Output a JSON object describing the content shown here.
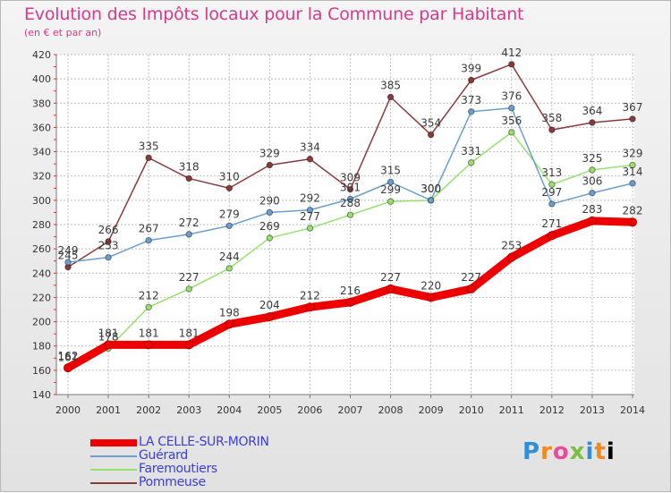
{
  "title": "Evolution des Impôts locaux pour la Commune par Habitant",
  "subtitle": "(en € et par an)",
  "logo": [
    "P",
    "r",
    "o",
    "x",
    "i",
    "t",
    "i"
  ],
  "chart_data": {
    "type": "line",
    "x": [
      "2000",
      "2001",
      "2002",
      "2003",
      "2004",
      "2005",
      "2006",
      "2007",
      "2008",
      "2009",
      "2010",
      "2011",
      "2012",
      "2013",
      "2014"
    ],
    "ylim": [
      140,
      420
    ],
    "yticks": [
      140,
      160,
      180,
      200,
      220,
      240,
      260,
      280,
      300,
      320,
      340,
      360,
      380,
      400,
      420
    ],
    "grid": true,
    "legend_position": "bottom-left",
    "series": [
      {
        "name": "LA CELLE-SUR-MORIN",
        "color": "#ee0000",
        "values": [
          162,
          181,
          181,
          181,
          198,
          204,
          212,
          216,
          227,
          220,
          227,
          253,
          271,
          283,
          282
        ]
      },
      {
        "name": "Guérard",
        "color": "#6a9fd0",
        "values": [
          249,
          253,
          267,
          272,
          279,
          290,
          292,
          301,
          315,
          300,
          373,
          376,
          297,
          306,
          314
        ]
      },
      {
        "name": "Faremoutiers",
        "color": "#98e070",
        "values": [
          161,
          178,
          212,
          227,
          244,
          269,
          277,
          288,
          299,
          300,
          331,
          356,
          313,
          325,
          329
        ]
      },
      {
        "name": "Pommeuse",
        "color": "#8a3a3a",
        "values": [
          245,
          266,
          335,
          318,
          310,
          329,
          334,
          309,
          385,
          354,
          399,
          412,
          358,
          364,
          367
        ]
      }
    ]
  }
}
